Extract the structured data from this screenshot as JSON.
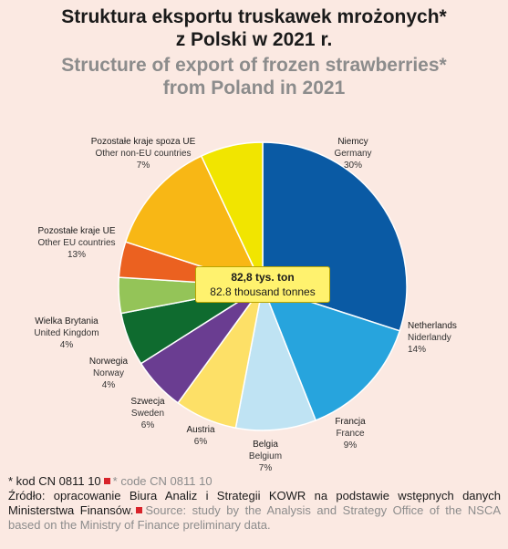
{
  "title": {
    "pl_line1": "Struktura eksportu truskawek mrożonych*",
    "pl_line2": "z Polski w 2021 r.",
    "en_line1": "Structure of export of frozen strawberries*",
    "en_line2": "from Poland in 2021"
  },
  "center": {
    "pl": "82,8 tys. ton",
    "en": "82.8 thousand tonnes"
  },
  "chart_data": {
    "type": "pie",
    "total_label": "82,8 tys. ton / 82.8 thousand tonnes",
    "slices": [
      {
        "pl": "Niemcy",
        "en": "Germany",
        "value": 30,
        "pct": "30%",
        "color": "#0a5aa4"
      },
      {
        "pl": "Netherlands",
        "en": "Niderlandy",
        "value": 14,
        "pct": "14%",
        "color": "#27a4dd"
      },
      {
        "pl": "Francja",
        "en": "France",
        "value": 9,
        "pct": "9%",
        "color": "#bfe3f3"
      },
      {
        "pl": "Belgia",
        "en": "Belgium",
        "value": 7,
        "pct": "7%",
        "color": "#fde067"
      },
      {
        "pl": "Austria",
        "en": "",
        "value": 6,
        "pct": "6%",
        "color": "#6a3d91"
      },
      {
        "pl": "Szwecja",
        "en": "Sweden",
        "value": 6,
        "pct": "6%",
        "color": "#0f6b2f"
      },
      {
        "pl": "Norwegia",
        "en": "Norway",
        "value": 4,
        "pct": "4%",
        "color": "#94c458"
      },
      {
        "pl": "Wielka Brytania",
        "en": "United Kingdom",
        "value": 4,
        "pct": "4%",
        "color": "#eb6120"
      },
      {
        "pl": "Pozostałe kraje UE",
        "en": "Other EU countries",
        "value": 13,
        "pct": "13%",
        "color": "#f8b715"
      },
      {
        "pl": "Pozostałe kraje spoza UE",
        "en": "Other non-EU countries",
        "value": 7,
        "pct": "7%",
        "color": "#f1e500"
      }
    ]
  },
  "footer": {
    "note_pl": "* kod CN 0811 10",
    "note_en": "* code CN 0811 10",
    "source_pl": "Źródło: opracowanie Biura Analiz i Strategii KOWR na podstawie wstępnych danych Ministerstwa Finansów.",
    "source_en": "Source: study by the Analysis and Strategy Office of the NSCA based on the Ministry of Finance preliminary data."
  },
  "colors": {
    "background": "#fbe9e2",
    "accent_red": "#d8232a",
    "gray_text": "#8c8c8c"
  }
}
